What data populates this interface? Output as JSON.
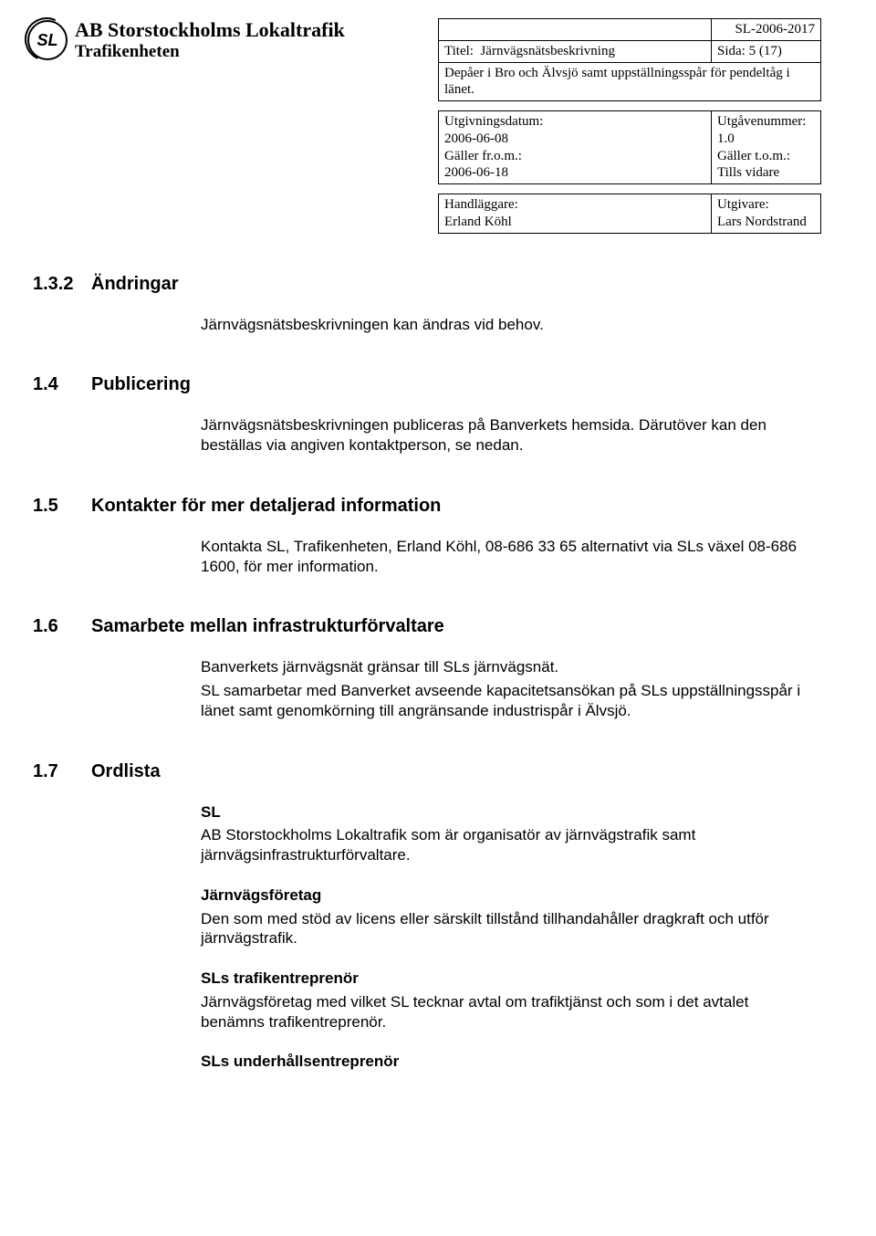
{
  "header": {
    "org_name": "AB Storstockholms Lokaltrafik",
    "org_unit": "Trafikenheten"
  },
  "meta": {
    "doc_id": "SL-2006-2017",
    "title_label": "Titel:",
    "title_value": "Järnvägsnätsbeskrivning",
    "page_label": "Sida:",
    "page_value": "5 (17)",
    "depot_line": "Depåer i Bro och Älvsjö samt uppställningsspår för pendeltåg i länet.",
    "issue_date_label": "Utgivningsdatum:",
    "issue_date_value": "2006-06-08",
    "edition_label": "Utgåvenummer:",
    "edition_value": "1.0",
    "valid_from_label": "Gäller fr.o.m.:",
    "valid_from_value": "2006-06-18",
    "valid_to_label": "Gäller t.o.m.:",
    "valid_to_value": "Tills vidare",
    "handler_label": "Handläggare:",
    "handler_value": "Erland Köhl",
    "publisher_label": "Utgivare:",
    "publisher_value": "Lars Nordstrand"
  },
  "sections": {
    "s132": {
      "num": "1.3.2",
      "title": "Ändringar",
      "body": "Järnvägsnätsbeskrivningen kan ändras vid behov."
    },
    "s14": {
      "num": "1.4",
      "title": "Publicering",
      "body": "Järnvägsnätsbeskrivningen publiceras på Banverkets hemsida. Därutöver kan den beställas via angiven kontaktperson, se nedan."
    },
    "s15": {
      "num": "1.5",
      "title": "Kontakter för mer detaljerad information",
      "body": "Kontakta SL, Trafikenheten, Erland Köhl, 08-686 33 65 alternativt via SLs växel 08-686 1600, för mer information."
    },
    "s16": {
      "num": "1.6",
      "title": "Samarbete mellan infrastrukturförvaltare",
      "p1": "Banverkets järnvägsnät gränsar till SLs järnvägsnät.",
      "p2": "SL samarbetar med Banverket avseende kapacitetsansökan på SLs uppställningsspår i länet samt genomkörning till angränsande industrispår i Älvsjö."
    },
    "s17": {
      "num": "1.7",
      "title": "Ordlista",
      "t1": "SL",
      "d1": "AB Storstockholms Lokaltrafik som är organisatör av järnvägstrafik samt järnvägsinfrastrukturförvaltare.",
      "t2": "Järnvägsföretag",
      "d2": "Den som med stöd av licens eller särskilt tillstånd tillhandahåller dragkraft och utför järnvägstrafik.",
      "t3": "SLs trafikentreprenör",
      "d3": "Järnvägsföretag med vilket SL tecknar avtal om trafiktjänst och som i det avtalet benämns trafikentreprenör.",
      "t4": "SLs underhållsentreprenör"
    }
  }
}
